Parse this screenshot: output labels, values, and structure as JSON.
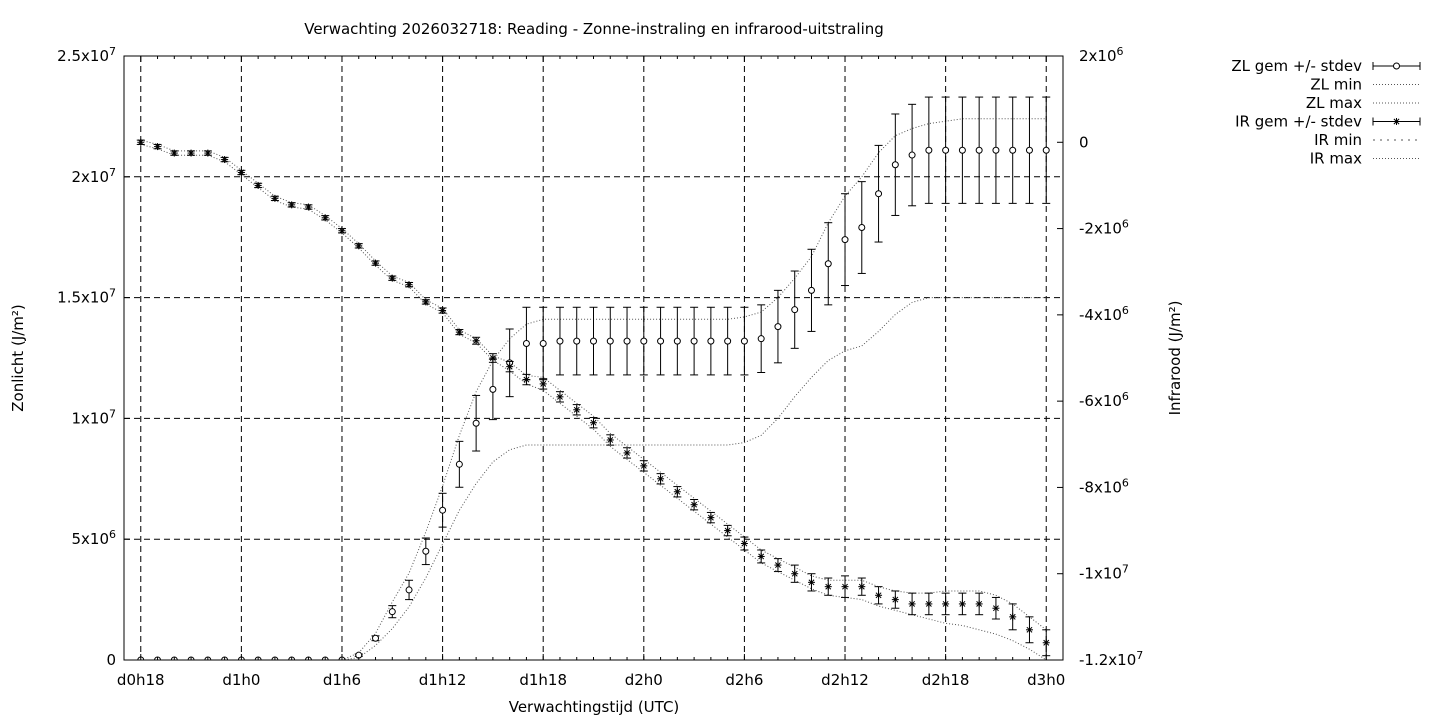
{
  "chart_data": {
    "type": "line",
    "title": "Verwachting 2026032718: Reading - Zonne-instraling en infrarood-uitstraling",
    "xlabel": "Verwachtingstijd (UTC)",
    "ylabel": "Zonlicht (J/m²)",
    "y2label": "Infrarood (J/m²)",
    "x_unit": "hours",
    "xlim": [
      17,
      73
    ],
    "ylim": [
      0,
      25000000
    ],
    "y2lim": [
      -12000000,
      2000000
    ],
    "grid": true,
    "legend_position": "top-right (outside plot)",
    "x_ticks": [
      {
        "value": 18,
        "label": "d0h18"
      },
      {
        "value": 24,
        "label": "d1h0"
      },
      {
        "value": 30,
        "label": "d1h6"
      },
      {
        "value": 36,
        "label": "d1h12"
      },
      {
        "value": 42,
        "label": "d1h18"
      },
      {
        "value": 48,
        "label": "d2h0"
      },
      {
        "value": 54,
        "label": "d2h6"
      },
      {
        "value": 60,
        "label": "d2h12"
      },
      {
        "value": 66,
        "label": "d2h18"
      },
      {
        "value": 72,
        "label": "d3h0"
      }
    ],
    "y_ticks": [
      {
        "value": 0,
        "label": "0"
      },
      {
        "value": 5000000,
        "label": "5x10",
        "exp": "6"
      },
      {
        "value": 10000000,
        "label": "1x10",
        "exp": "7"
      },
      {
        "value": 15000000,
        "label": "1.5x10",
        "exp": "7"
      },
      {
        "value": 20000000,
        "label": "2x10",
        "exp": "7"
      },
      {
        "value": 25000000,
        "label": "2.5x10",
        "exp": "7"
      }
    ],
    "y2_ticks": [
      {
        "value": 2000000,
        "label": "2x10",
        "exp": "6"
      },
      {
        "value": 0,
        "label": "0"
      },
      {
        "value": -2000000,
        "label": "-2x10",
        "exp": "6"
      },
      {
        "value": -4000000,
        "label": "-4x10",
        "exp": "6"
      },
      {
        "value": -6000000,
        "label": "-6x10",
        "exp": "6"
      },
      {
        "value": -8000000,
        "label": "-8x10",
        "exp": "6"
      },
      {
        "value": -10000000,
        "label": "-1x10",
        "exp": "7"
      },
      {
        "value": -12000000,
        "label": "-1.2x10",
        "exp": "7"
      }
    ],
    "x": [
      18,
      19,
      20,
      21,
      22,
      23,
      24,
      25,
      26,
      27,
      28,
      29,
      30,
      31,
      32,
      33,
      34,
      35,
      36,
      37,
      38,
      39,
      40,
      41,
      42,
      43,
      44,
      45,
      46,
      47,
      48,
      49,
      50,
      51,
      52,
      53,
      54,
      55,
      56,
      57,
      58,
      59,
      60,
      61,
      62,
      63,
      64,
      65,
      66,
      67,
      68,
      69,
      70,
      71,
      72
    ],
    "series": [
      {
        "name": "ZL gem +/- stdev",
        "axis": "y",
        "marker": "circle",
        "mean": [
          0,
          0,
          0,
          0,
          0,
          0,
          0,
          0,
          0,
          0,
          0,
          0,
          0,
          200000,
          900000,
          2000000,
          2900000,
          4500000,
          6200000,
          8100000,
          9800000,
          11200000,
          12300000,
          13100000,
          13100000,
          13200000,
          13200000,
          13200000,
          13200000,
          13200000,
          13200000,
          13200000,
          13200000,
          13200000,
          13200000,
          13200000,
          13200000,
          13300000,
          13800000,
          14500000,
          15300000,
          16400000,
          17400000,
          17900000,
          19300000,
          20500000,
          20900000,
          21100000,
          21100000,
          21100000,
          21100000,
          21100000,
          21100000,
          21100000,
          21100000
        ],
        "stdev": [
          0,
          0,
          0,
          0,
          0,
          0,
          0,
          0,
          0,
          0,
          0,
          0,
          0,
          50000,
          100000,
          250000,
          400000,
          550000,
          700000,
          950000,
          1150000,
          1250000,
          1400000,
          1500000,
          1500000,
          1400000,
          1400000,
          1400000,
          1400000,
          1400000,
          1400000,
          1400000,
          1400000,
          1400000,
          1400000,
          1400000,
          1400000,
          1400000,
          1500000,
          1600000,
          1700000,
          1700000,
          1900000,
          1900000,
          2000000,
          2100000,
          2100000,
          2200000,
          2200000,
          2200000,
          2200000,
          2200000,
          2200000,
          2200000,
          2200000
        ]
      },
      {
        "name": "ZL min",
        "axis": "y",
        "style": "dotted",
        "values": [
          0,
          0,
          0,
          0,
          0,
          0,
          0,
          0,
          0,
          0,
          0,
          0,
          0,
          100000,
          600000,
          1300000,
          2200000,
          3400000,
          4800000,
          6200000,
          7300000,
          8200000,
          8700000,
          8900000,
          8900000,
          8900000,
          8900000,
          8900000,
          8900000,
          8900000,
          8900000,
          8900000,
          8900000,
          8900000,
          8900000,
          8900000,
          9000000,
          9300000,
          10000000,
          10900000,
          11700000,
          12400000,
          12800000,
          13000000,
          13600000,
          14300000,
          14800000,
          15000000,
          15000000,
          15000000,
          15000000,
          15000000,
          15000000,
          15000000,
          15000000
        ]
      },
      {
        "name": "ZL max",
        "axis": "y",
        "style": "dotted",
        "values": [
          0,
          0,
          0,
          0,
          0,
          0,
          0,
          0,
          0,
          0,
          0,
          0,
          0,
          300000,
          1100000,
          2400000,
          3600000,
          5300000,
          7200000,
          9300000,
          11100000,
          12400000,
          13300000,
          13900000,
          14100000,
          14100000,
          14100000,
          14100000,
          14100000,
          14100000,
          14100000,
          14100000,
          14100000,
          14100000,
          14100000,
          14100000,
          14200000,
          14400000,
          15000000,
          15800000,
          16700000,
          18100000,
          19200000,
          20000000,
          21000000,
          21700000,
          22000000,
          22200000,
          22300000,
          22400000,
          22400000,
          22400000,
          22400000,
          22400000,
          22400000
        ]
      },
      {
        "name": "IR gem +/- stdev",
        "axis": "y2",
        "marker": "star",
        "mean": [
          0,
          -100000,
          -250000,
          -250000,
          -250000,
          -400000,
          -700000,
          -1000000,
          -1300000,
          -1450000,
          -1500000,
          -1750000,
          -2050000,
          -2400000,
          -2800000,
          -3150000,
          -3300000,
          -3700000,
          -3900000,
          -4400000,
          -4600000,
          -5000000,
          -5200000,
          -5500000,
          -5600000,
          -5900000,
          -6200000,
          -6500000,
          -6900000,
          -7200000,
          -7500000,
          -7800000,
          -8100000,
          -8400000,
          -8700000,
          -9000000,
          -9300000,
          -9600000,
          -9800000,
          -10000000,
          -10200000,
          -10300000,
          -10300000,
          -10300000,
          -10500000,
          -10600000,
          -10700000,
          -10700000,
          -10700000,
          -10700000,
          -10700000,
          -10800000,
          -11000000,
          -11300000,
          -11600000
        ],
        "stdev": [
          50000,
          50000,
          50000,
          50000,
          50000,
          50000,
          50000,
          50000,
          50000,
          50000,
          50000,
          50000,
          50000,
          50000,
          50000,
          50000,
          50000,
          50000,
          60000,
          60000,
          80000,
          100000,
          120000,
          120000,
          120000,
          120000,
          120000,
          120000,
          120000,
          120000,
          120000,
          120000,
          120000,
          120000,
          120000,
          120000,
          150000,
          150000,
          150000,
          200000,
          200000,
          200000,
          250000,
          200000,
          200000,
          200000,
          250000,
          250000,
          250000,
          250000,
          250000,
          250000,
          300000,
          300000,
          300000
        ]
      },
      {
        "name": "IR min",
        "axis": "y2",
        "style": "dotted",
        "values": [
          -50000,
          -150000,
          -300000,
          -300000,
          -300000,
          -450000,
          -750000,
          -1050000,
          -1350000,
          -1500000,
          -1550000,
          -1800000,
          -2100000,
          -2450000,
          -2850000,
          -3200000,
          -3350000,
          -3750000,
          -3950000,
          -4450000,
          -4650000,
          -5050000,
          -5300000,
          -5600000,
          -5750000,
          -6050000,
          -6350000,
          -6650000,
          -7050000,
          -7350000,
          -7650000,
          -7950000,
          -8250000,
          -8550000,
          -8850000,
          -9150000,
          -9450000,
          -9750000,
          -9950000,
          -10150000,
          -10350000,
          -10500000,
          -10550000,
          -10600000,
          -10750000,
          -10850000,
          -10950000,
          -11050000,
          -11150000,
          -11200000,
          -11300000,
          -11400000,
          -11550000,
          -11750000,
          -12000000
        ]
      },
      {
        "name": "IR max",
        "axis": "y2",
        "style": "dotted",
        "values": [
          50000,
          -50000,
          -200000,
          -200000,
          -200000,
          -350000,
          -650000,
          -950000,
          -1250000,
          -1400000,
          -1450000,
          -1700000,
          -2000000,
          -2350000,
          -2750000,
          -3100000,
          -3250000,
          -3650000,
          -3850000,
          -4350000,
          -4550000,
          -4950000,
          -5100000,
          -5400000,
          -5450000,
          -5750000,
          -6050000,
          -6350000,
          -6750000,
          -7050000,
          -7350000,
          -7650000,
          -7950000,
          -8250000,
          -8550000,
          -8850000,
          -9150000,
          -9450000,
          -9650000,
          -9850000,
          -10050000,
          -10150000,
          -10150000,
          -10150000,
          -10300000,
          -10400000,
          -10450000,
          -10450000,
          -10400000,
          -10400000,
          -10400000,
          -10500000,
          -10700000,
          -11000000,
          -11300000
        ]
      }
    ]
  }
}
